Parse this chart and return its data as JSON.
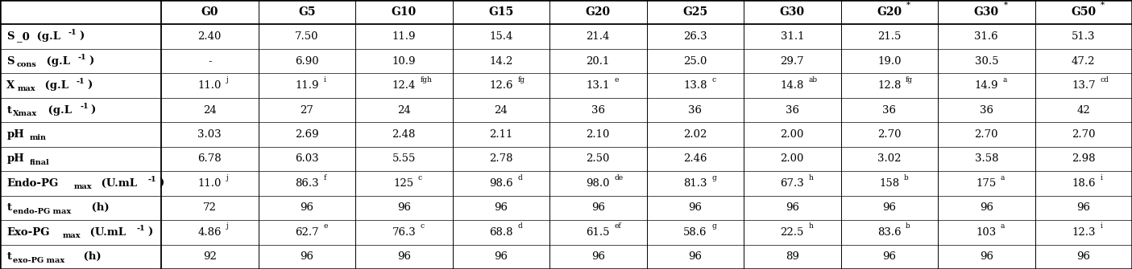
{
  "col_headers_display": [
    "G0",
    "G5",
    "G10",
    "G15",
    "G20",
    "G25",
    "G30",
    "G20",
    "G30",
    "G50"
  ],
  "col_headers_star": [
    false,
    false,
    false,
    false,
    false,
    false,
    false,
    true,
    true,
    true
  ],
  "rows": [
    {
      "label": "S$_0$ (g.L$^{-1}$)",
      "label_bold": true,
      "values": [
        "2.40",
        "7.50",
        "11.9",
        "15.4",
        "21.4",
        "26.3",
        "31.1",
        "21.5",
        "31.6",
        "51.3"
      ],
      "superscripts": [
        "",
        "",
        "",
        "",
        "",
        "",
        "",
        "",
        "",
        ""
      ]
    },
    {
      "label": "S$_{cons}$ (g.L$^{-1}$)",
      "label_bold": true,
      "values": [
        "-",
        "6.90",
        "10.9",
        "14.2",
        "20.1",
        "25.0",
        "29.7",
        "19.0",
        "30.5",
        "47.2"
      ],
      "superscripts": [
        "",
        "",
        "",
        "",
        "",
        "",
        "",
        "",
        "",
        ""
      ]
    },
    {
      "label": "X$_{max}$ (g.L$^{-1}$)",
      "label_bold": true,
      "values": [
        "11.0",
        "11.9",
        "12.4",
        "12.6",
        "13.1",
        "13.8",
        "14.8",
        "12.8",
        "14.9",
        "13.7"
      ],
      "superscripts": [
        "j",
        "i",
        "fgh",
        "fg",
        "e",
        "c",
        "ab",
        "fg",
        "a",
        "cd"
      ]
    },
    {
      "label": "t$_{Xmax}$ (g.L$^{-1}$)",
      "label_bold": true,
      "values": [
        "24",
        "27",
        "24",
        "24",
        "36",
        "36",
        "36",
        "36",
        "36",
        "42"
      ],
      "superscripts": [
        "",
        "",
        "",
        "",
        "",
        "",
        "",
        "",
        "",
        ""
      ]
    },
    {
      "label": "pH$_{min}$",
      "label_bold": true,
      "values": [
        "3.03",
        "2.69",
        "2.48",
        "2.11",
        "2.10",
        "2.02",
        "2.00",
        "2.70",
        "2.70",
        "2.70"
      ],
      "superscripts": [
        "",
        "",
        "",
        "",
        "",
        "",
        "",
        "",
        "",
        ""
      ]
    },
    {
      "label": "pH$_{final}$",
      "label_bold": true,
      "values": [
        "6.78",
        "6.03",
        "5.55",
        "2.78",
        "2.50",
        "2.46",
        "2.00",
        "3.02",
        "3.58",
        "2.98"
      ],
      "superscripts": [
        "",
        "",
        "",
        "",
        "",
        "",
        "",
        "",
        "",
        ""
      ]
    },
    {
      "label": "Endo-PG$_{max}$ (U.mL$^{-1}$)",
      "label_bold": true,
      "values": [
        "11.0",
        "86.3",
        "125",
        "98.6",
        "98.0",
        "81.3",
        "67.3",
        "158",
        "175",
        "18.6"
      ],
      "superscripts": [
        "j",
        "f",
        "c",
        "d",
        "de",
        "g",
        "h",
        "b",
        "a",
        "i"
      ]
    },
    {
      "label": "t$_{endo-PG max}$ (h)",
      "label_bold": true,
      "values": [
        "72",
        "96",
        "96",
        "96",
        "96",
        "96",
        "96",
        "96",
        "96",
        "96"
      ],
      "superscripts": [
        "",
        "",
        "",
        "",
        "",
        "",
        "",
        "",
        "",
        ""
      ]
    },
    {
      "label": "Exo-PG$_{max}$ (U.mL$^{-1}$)",
      "label_bold": true,
      "values": [
        "4.86",
        "62.7",
        "76.3",
        "68.8",
        "61.5",
        "58.6",
        "22.5",
        "83.6",
        "103",
        "12.3"
      ],
      "superscripts": [
        "j",
        "e",
        "c",
        "d",
        "ef",
        "g",
        "h",
        "b",
        "a",
        "i"
      ]
    },
    {
      "label": "t$_{exo-PG max}$ (h)",
      "label_bold": true,
      "values": [
        "92",
        "96",
        "96",
        "96",
        "96",
        "96",
        "89",
        "96",
        "96",
        "96"
      ],
      "superscripts": [
        "",
        "",
        "",
        "",
        "",
        "",
        "",
        "",
        "",
        ""
      ]
    }
  ],
  "background_color": "#ffffff",
  "text_color": "#000000",
  "fig_width": 14.05,
  "fig_height": 3.35,
  "dpi": 100
}
